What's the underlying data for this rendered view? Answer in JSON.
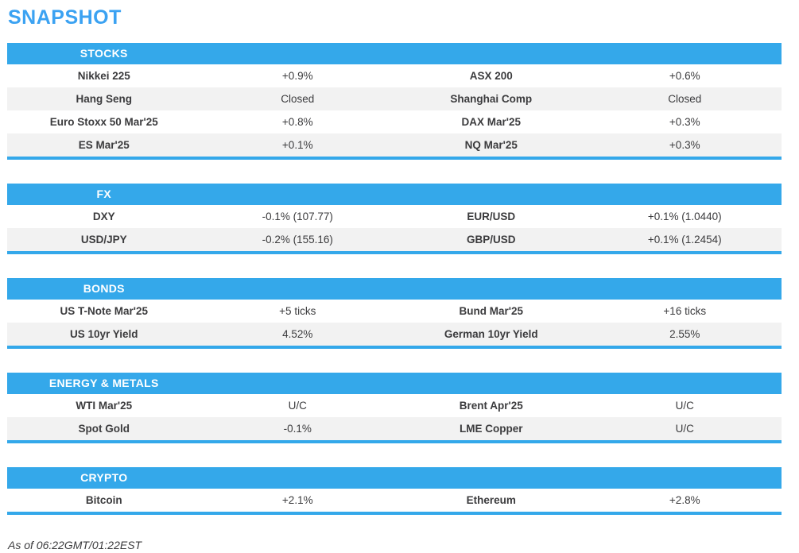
{
  "title": "SNAPSHOT",
  "footer": "As of 06:22GMT/01:22EST",
  "colors": {
    "title_blue": "#3ba2f2",
    "bar_blue": "#34a8ea",
    "row_alt": "#f2f2f2",
    "text": "#3b3b3d"
  },
  "sections": [
    {
      "header": "STOCKS",
      "rows": [
        {
          "l1": "Nikkei 225",
          "v1": "+0.9%",
          "l2": "ASX 200",
          "v2": "+0.6%"
        },
        {
          "l1": "Hang Seng",
          "v1": "Closed",
          "l2": "Shanghai Comp",
          "v2": "Closed"
        },
        {
          "l1": "Euro Stoxx 50 Mar'25",
          "v1": "+0.8%",
          "l2": "DAX Mar'25",
          "v2": "+0.3%"
        },
        {
          "l1": "ES Mar'25",
          "v1": "+0.1%",
          "l2": "NQ Mar'25",
          "v2": "+0.3%"
        }
      ]
    },
    {
      "header": "FX",
      "rows": [
        {
          "l1": "DXY",
          "v1": "-0.1% (107.77)",
          "l2": "EUR/USD",
          "v2": "+0.1% (1.0440)"
        },
        {
          "l1": "USD/JPY",
          "v1": "-0.2% (155.16)",
          "l2": "GBP/USD",
          "v2": "+0.1% (1.2454)"
        }
      ]
    },
    {
      "header": "BONDS",
      "rows": [
        {
          "l1": "US T-Note Mar'25",
          "v1": "+5 ticks",
          "l2": "Bund Mar'25",
          "v2": "+16 ticks"
        },
        {
          "l1": "US 10yr Yield",
          "v1": "4.52%",
          "l2": "German 10yr Yield",
          "v2": "2.55%"
        }
      ]
    },
    {
      "header": "ENERGY & METALS",
      "rows": [
        {
          "l1": "WTI Mar'25",
          "v1": "U/C",
          "l2": "Brent Apr'25",
          "v2": "U/C"
        },
        {
          "l1": "Spot Gold",
          "v1": "-0.1%",
          "l2": "LME Copper",
          "v2": "U/C"
        }
      ]
    },
    {
      "header": "CRYPTO",
      "rows": [
        {
          "l1": "Bitcoin",
          "v1": "+2.1%",
          "l2": "Ethereum",
          "v2": "+2.8%"
        }
      ]
    }
  ]
}
